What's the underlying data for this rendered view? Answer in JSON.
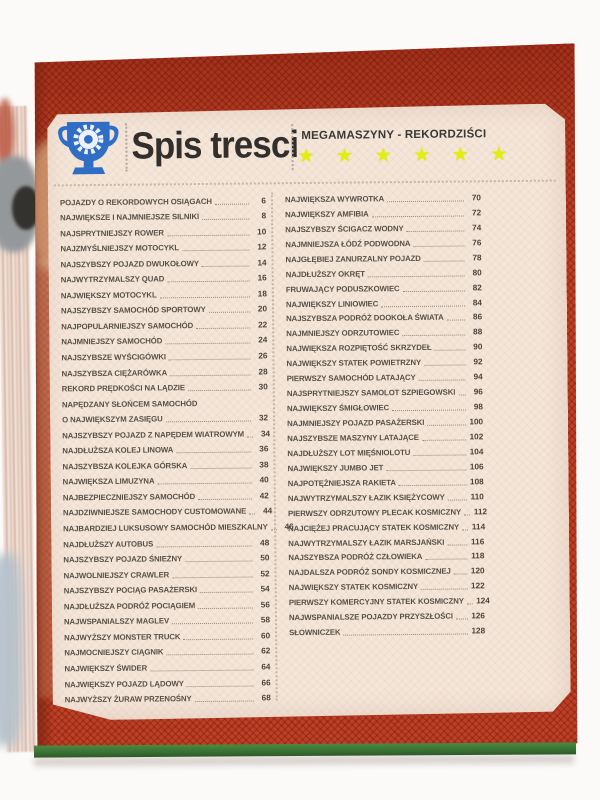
{
  "photo": {
    "background_color": "#fbfaf8",
    "cover_color": "#bd4026",
    "panel_color": "#f4e6d9",
    "green_page_color": "#3f7c3b",
    "star_color": "#e2ee0e",
    "trophy_color": "#2f6ec4"
  },
  "header": {
    "title": "Spis tresci",
    "series_label": "MEGAMASZYNY - REKORDZIŚCI",
    "trophy_icon": "trophy-with-gear",
    "rating": {
      "star_icon": "star",
      "count": 6
    }
  },
  "toc": {
    "left_column": {
      "entries": [
        {
          "label": "POJAZDY O REKORDOWYCH OSIĄGACH",
          "page": "6"
        },
        {
          "label": "NAJWIĘKSZE I NAJMNIEJSZE SILNIKI",
          "page": "8"
        },
        {
          "label": "NAJSPRYTNIEJSZY ROWER",
          "page": "10"
        },
        {
          "label": "NAJZMYŚLNIEJSZY MOTOCYKL",
          "page": "12"
        },
        {
          "label": "NAJSZYBSZY POJAZD DWUKOŁOWY",
          "page": "14"
        },
        {
          "label": "NAJWYTRZYMALSZY QUAD",
          "page": "16"
        },
        {
          "label": "NAJWIĘKSZY MOTOCYKL",
          "page": "18"
        },
        {
          "label": "NAJSZYBSZY SAMOCHÓD SPORTOWY",
          "page": "20"
        },
        {
          "label": "NAJPOPULARNIEJSZY SAMOCHÓD",
          "page": "22"
        },
        {
          "label": "NAJMNIEJSZY SAMOCHÓD",
          "page": "24"
        },
        {
          "label": "NAJSZYBSZE WYŚCIGÓWKI",
          "page": "26"
        },
        {
          "label": "NAJSZYBSZA CIĘŻARÓWKA",
          "page": "28"
        },
        {
          "label": "REKORD PRĘDKOŚCI NA LĄDZIE",
          "page": "30"
        },
        {
          "label": "NAPĘDZANY SŁOŃCEM SAMOCHÓD",
          "page": null
        },
        {
          "label": "O NAJWIĘKSZYM ZASIĘGU",
          "page": "32"
        },
        {
          "label": "NAJSZYBSZY POJAZD Z NAPĘDEM WIATROWYM",
          "page": "34"
        },
        {
          "label": "NAJDŁUŻSZA KOLEJ LINOWA",
          "page": "36"
        },
        {
          "label": "NAJSZYBSZA KOLEJKA GÓRSKA",
          "page": "38"
        },
        {
          "label": "NAJWIĘKSZA LIMUZYNA",
          "page": "40"
        },
        {
          "label": "NAJBEZPIECZNIEJSZY SAMOCHÓD",
          "page": "42"
        },
        {
          "label": "NAJDZIWNIEJSZE SAMOCHODY CUSTOMOWANE",
          "page": "44"
        },
        {
          "label": "NAJBARDZIEJ LUKSUSOWY SAMOCHÓD MIESZKALNY",
          "page": "46"
        },
        {
          "label": "NAJDŁUŻSZY AUTOBUS",
          "page": "48"
        },
        {
          "label": "NAJSZYBSZY POJAZD ŚNIEŻNY",
          "page": "50"
        },
        {
          "label": "NAJWOLNIEJSZY CRAWLER",
          "page": "52"
        },
        {
          "label": "NAJSZYBSZY POCIĄG PASAŻERSKI",
          "page": "54"
        },
        {
          "label": "NAJDŁUŻSZA PODRÓŻ POCIĄGIEM",
          "page": "56"
        },
        {
          "label": "NAJWSPANIALSZY MAGLEV",
          "page": "58"
        },
        {
          "label": "NAJWYŻSZY MONSTER TRUCK",
          "page": "60"
        },
        {
          "label": "NAJMOCNIEJSZY CIĄGNIK",
          "page": "62"
        },
        {
          "label": "NAJWIĘKSZY ŚWIDER",
          "page": "64"
        },
        {
          "label": "NAJWIĘKSZY POJAZD LĄDOWY",
          "page": "66"
        },
        {
          "label": "NAJWYŻSZY ŻURAW PRZENOŚNY",
          "page": "68"
        }
      ]
    },
    "right_column": {
      "entries": [
        {
          "label": "NAJWIĘKSZA WYWROTKA",
          "page": "70"
        },
        {
          "label": "NAJWIĘKSZY AMFIBIA",
          "page": "72"
        },
        {
          "label": "NAJSZYBSZY ŚCIGACZ WODNY",
          "page": "74"
        },
        {
          "label": "NAJMNIEJSZA ŁÓDŹ PODWODNA",
          "page": "76"
        },
        {
          "label": "NAJGŁĘBIEJ ZANURZALNY POJAZD",
          "page": "78"
        },
        {
          "label": "NAJDŁUŻSZY OKRĘT",
          "page": "80"
        },
        {
          "label": "FRUWAJĄCY PODUSZKOWIEC",
          "page": "82"
        },
        {
          "label": "NAJWIĘKSZY LINIOWIEC",
          "page": "84"
        },
        {
          "label": "NAJSZYBSZA PODRÓŻ DOOKOŁA ŚWIATA",
          "page": "86"
        },
        {
          "label": "NAJMNIEJSZY ODRZUTOWIEC",
          "page": "88"
        },
        {
          "label": "NAJWIĘKSZA ROZPIĘTOŚĆ SKRZYDEŁ",
          "page": "90"
        },
        {
          "label": "NAJWIĘKSZY STATEK POWIETRZNY",
          "page": "92"
        },
        {
          "label": "PIERWSZY SAMOCHÓD LATAJĄCY",
          "page": "94"
        },
        {
          "label": "NAJSPRYTNIEJSZY SAMOLOT SZPIEGOWSKI",
          "page": "96"
        },
        {
          "label": "NAJWIĘKSZY ŚMIGŁOWIEC",
          "page": "98"
        },
        {
          "label": "NAJMNIEJSZY POJAZD PASAŻERSKI",
          "page": "100"
        },
        {
          "label": "NAJSZYBSZE MASZYNY LATAJĄCE",
          "page": "102"
        },
        {
          "label": "NAJDŁUŻSZY LOT MIĘŚNIOLOTU",
          "page": "104"
        },
        {
          "label": "NAJWIĘKSZY JUMBO JET",
          "page": "106"
        },
        {
          "label": "NAJPOTĘŻNIEJSZA RAKIETA",
          "page": "108"
        },
        {
          "label": "NAJWYTRZYMALSZY ŁAZIK KSIĘŻYCOWY",
          "page": "110"
        },
        {
          "label": "PIERWSZY ODRZUTOWY PLECAK KOSMICZNY",
          "page": "112"
        },
        {
          "label": "NAJCIĘŻEJ PRACUJĄCY STATEK KOSMICZNY",
          "page": "114"
        },
        {
          "label": "NAJWYTRZYMALSZY ŁAZIK MARSJAŃSKI",
          "page": "116"
        },
        {
          "label": "NAJSZYBSZA PODRÓŻ CZŁOWIEKA",
          "page": "118"
        },
        {
          "label": "NAJDALSZA PODRÓŻ SONDY KOSMICZNEJ",
          "page": "120"
        },
        {
          "label": "NAJWIĘKSZY STATEK KOSMICZNY",
          "page": "122"
        },
        {
          "label": "PIERWSZY KOMERCYJNY STATEK KOSMICZNY",
          "page": "124"
        },
        {
          "label": "NAJWSPANIALSZE POJAZDY PRZYSZŁOŚCI",
          "page": "126"
        },
        {
          "label": "SŁOWNICZEK",
          "page": "128"
        }
      ]
    }
  }
}
